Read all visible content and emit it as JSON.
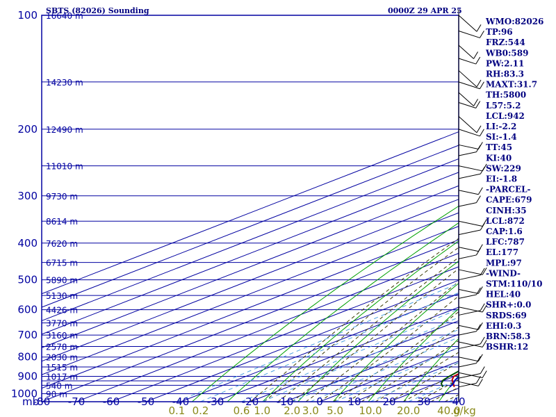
{
  "header": {
    "station_title": "SBTS (82026) Sounding",
    "valid_time": "0000Z 29 APR 25"
  },
  "indices": [
    "WMO:82026",
    "TP:96",
    "FRZ:544",
    "WB0:589",
    "PW:2.11",
    "RH:83.3",
    "MAXT:31.7",
    "TH:5800",
    "L57:5.2",
    "LCL:942",
    "LI:-2.2",
    "SI:-1.4",
    "TT:45",
    "KI:40",
    "SW:229",
    "EI:-1.8",
    "-PARCEL-",
    "CAPE:679",
    "CINH:35",
    "LCL:872",
    "CAP:1.6",
    "LFC:787",
    "EL:177",
    "MPL:97",
    "-WIND-",
    "STM:110/10",
    "HEL:40",
    "SHR+:0.0",
    "SRDS:69",
    "EHI:0.3",
    "BRN:58.3",
    "BSHR:12"
  ],
  "colors": {
    "frame": "#0000a0",
    "dry_adiabat": "#00a000",
    "moist_adiabat": "#3a3a00",
    "mixing_ratio": "#4aa0e0",
    "temperature": "#c00000",
    "dewpoint": "#005000",
    "parcel": "#0000c0",
    "wind": "#000000"
  },
  "chart_data": {
    "type": "line",
    "chart_kind": "skew-T log-P sounding",
    "y_axis": {
      "unit_label": "mb",
      "scale": "log",
      "range": [
        1000,
        100
      ],
      "ticks": [
        100,
        200,
        300,
        400,
        500,
        600,
        700,
        800,
        900,
        1000
      ],
      "isobars": [
        100,
        150,
        200,
        250,
        300,
        350,
        400,
        450,
        500,
        550,
        600,
        650,
        700,
        750,
        800,
        850,
        900,
        925,
        950,
        1000
      ]
    },
    "x_axis": {
      "unit": "C",
      "range": [
        -80,
        40
      ],
      "ticks": [
        "-80",
        "-70",
        "-60",
        "-50",
        "-40",
        "-30",
        "-20",
        "-10",
        "0",
        "10",
        "20",
        "30",
        "40"
      ]
    },
    "mixing_ratio_axis": {
      "unit_label": "g/kg",
      "ticks": [
        "0.1",
        "0.2",
        "0.6",
        "1.0",
        "2.0",
        "3.0",
        "5.0",
        "10.0",
        "20.0",
        "40.0"
      ]
    },
    "height_labels": [
      {
        "p": 100,
        "label": "16640 m"
      },
      {
        "p": 150,
        "label": "14230 m"
      },
      {
        "p": 200,
        "label": "12490 m"
      },
      {
        "p": 250,
        "label": "11010 m"
      },
      {
        "p": 300,
        "label": "9730 m"
      },
      {
        "p": 350,
        "label": "8614 m"
      },
      {
        "p": 400,
        "label": "7620 m"
      },
      {
        "p": 450,
        "label": "6715 m"
      },
      {
        "p": 500,
        "label": "5890 m"
      },
      {
        "p": 550,
        "label": "5130 m"
      },
      {
        "p": 600,
        "label": "4426 m"
      },
      {
        "p": 650,
        "label": "3770 m"
      },
      {
        "p": 700,
        "label": "3160 m"
      },
      {
        "p": 750,
        "label": "2578 m"
      },
      {
        "p": 800,
        "label": "2030 m"
      },
      {
        "p": 850,
        "label": "1515 m"
      },
      {
        "p": 900,
        "label": "1017 m"
      },
      {
        "p": 950,
        "label": "540 m"
      },
      {
        "p": 1000,
        "label": "90 m"
      }
    ],
    "series": [
      {
        "key": "temperature",
        "points": [
          [
            960,
            27.8
          ],
          [
            940,
            25
          ],
          [
            920,
            22
          ],
          [
            900,
            19.8
          ],
          [
            875,
            19
          ],
          [
            850,
            17.5
          ],
          [
            800,
            14.3
          ],
          [
            750,
            10.6
          ],
          [
            700,
            6.4
          ],
          [
            650,
            1.6
          ],
          [
            620,
            -0.8
          ],
          [
            600,
            -2
          ],
          [
            570,
            -3
          ],
          [
            550,
            -4.2
          ],
          [
            530,
            -5.8
          ],
          [
            500,
            -8.5
          ],
          [
            480,
            -10.5
          ],
          [
            460,
            -12.5
          ],
          [
            450,
            -14
          ],
          [
            430,
            -15.5
          ],
          [
            400,
            -19.5
          ],
          [
            380,
            -21.5
          ],
          [
            350,
            -25.5
          ],
          [
            330,
            -28
          ],
          [
            300,
            -32.5
          ],
          [
            280,
            -35.2
          ],
          [
            260,
            -38.5
          ],
          [
            250,
            -40.5
          ],
          [
            230,
            -43.5
          ],
          [
            210,
            -47
          ],
          [
            200,
            -49.5
          ],
          [
            180,
            -53
          ],
          [
            160,
            -57
          ],
          [
            150,
            -59.5
          ],
          [
            140,
            -62
          ],
          [
            125,
            -66
          ],
          [
            110,
            -71
          ],
          [
            100,
            -75
          ]
        ]
      },
      {
        "key": "dewpoint",
        "points": [
          [
            960,
            24.5
          ],
          [
            940,
            21.5
          ],
          [
            920,
            19.5
          ],
          [
            900,
            18.5
          ],
          [
            875,
            17.5
          ],
          [
            850,
            16
          ],
          [
            800,
            12
          ],
          [
            750,
            8.6
          ],
          [
            700,
            4.6
          ],
          [
            650,
            -0.5
          ],
          [
            600,
            -8
          ],
          [
            570,
            -12
          ],
          [
            555,
            -14.5
          ],
          [
            540,
            -10
          ],
          [
            520,
            -9.5
          ],
          [
            505,
            -11
          ],
          [
            500,
            -14
          ],
          [
            480,
            -14.5
          ],
          [
            460,
            -15
          ],
          [
            455,
            -25.5
          ],
          [
            430,
            -28.5
          ],
          [
            400,
            -31.5
          ],
          [
            385,
            -42
          ],
          [
            370,
            -38
          ],
          [
            350,
            -37.5
          ],
          [
            320,
            -37
          ],
          [
            300,
            -43
          ],
          [
            290,
            -49
          ],
          [
            275,
            -53
          ],
          [
            270,
            -46
          ],
          [
            260,
            -51
          ],
          [
            250,
            -53
          ],
          [
            240,
            -50
          ],
          [
            230,
            -56
          ],
          [
            220,
            -59
          ],
          [
            210,
            -55
          ],
          [
            200,
            -59
          ],
          [
            190,
            -61
          ],
          [
            180,
            -66.5
          ],
          [
            175,
            -62
          ],
          [
            160,
            -71
          ],
          [
            140,
            -74
          ],
          [
            125,
            -77.5
          ],
          [
            110,
            -80.5
          ],
          [
            100,
            -82.5
          ]
        ]
      },
      {
        "key": "parcel",
        "points": [
          [
            960,
            26.5
          ],
          [
            940,
            25
          ],
          [
            920,
            22.9
          ],
          [
            900,
            21.5
          ],
          [
            872,
            19.5
          ],
          [
            850,
            18.2
          ],
          [
            800,
            15.5
          ],
          [
            787,
            14.6
          ],
          [
            750,
            12.3
          ],
          [
            700,
            8.5
          ],
          [
            650,
            4.5
          ],
          [
            600,
            0
          ],
          [
            550,
            -4.6
          ],
          [
            500,
            -9.5
          ],
          [
            450,
            -15
          ],
          [
            400,
            -21
          ],
          [
            350,
            -27
          ],
          [
            300,
            -33.5
          ],
          [
            250,
            -41
          ],
          [
            200,
            -49
          ],
          [
            150,
            -58.5
          ],
          [
            125,
            -64.5
          ],
          [
            110,
            -69
          ],
          [
            100,
            -72.5
          ]
        ]
      }
    ],
    "wind_barbs": [
      {
        "p": 960
      },
      {
        "p": 930
      },
      {
        "p": 910
      },
      {
        "p": 880
      },
      {
        "p": 850
      },
      {
        "p": 800
      },
      {
        "p": 760
      },
      {
        "p": 730
      },
      {
        "p": 700
      },
      {
        "p": 660
      },
      {
        "p": 620
      },
      {
        "p": 590
      },
      {
        "p": 560
      },
      {
        "p": 530
      },
      {
        "p": 500
      },
      {
        "p": 470
      },
      {
        "p": 440
      },
      {
        "p": 410
      },
      {
        "p": 380
      },
      {
        "p": 350
      },
      {
        "p": 320
      },
      {
        "p": 290
      },
      {
        "p": 270
      },
      {
        "p": 250
      },
      {
        "p": 235
      },
      {
        "p": 220
      },
      {
        "p": 200
      },
      {
        "p": 185
      },
      {
        "p": 170
      },
      {
        "p": 160
      },
      {
        "p": 150
      },
      {
        "p": 140
      },
      {
        "p": 130
      },
      {
        "p": 120
      },
      {
        "p": 110
      },
      {
        "p": 100
      }
    ]
  }
}
